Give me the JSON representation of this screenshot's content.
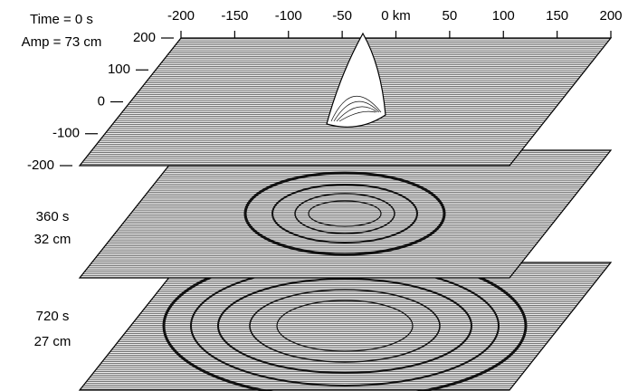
{
  "axes": {
    "xlim": [
      -200,
      200
    ],
    "ylim": [
      -200,
      200
    ],
    "xticks": [
      -200,
      -150,
      -100,
      -50,
      {
        "value": 0,
        "label": "0 km"
      },
      50,
      100,
      150,
      200
    ],
    "yticks": [
      200,
      100,
      0,
      -100,
      -200
    ]
  },
  "panels": [
    {
      "time": "Time = 0 s",
      "amplitude": "Amp = 73 cm"
    },
    {
      "time": "360 s",
      "amplitude": "32 cm"
    },
    {
      "time": "720 s",
      "amplitude": "27 cm"
    }
  ]
}
